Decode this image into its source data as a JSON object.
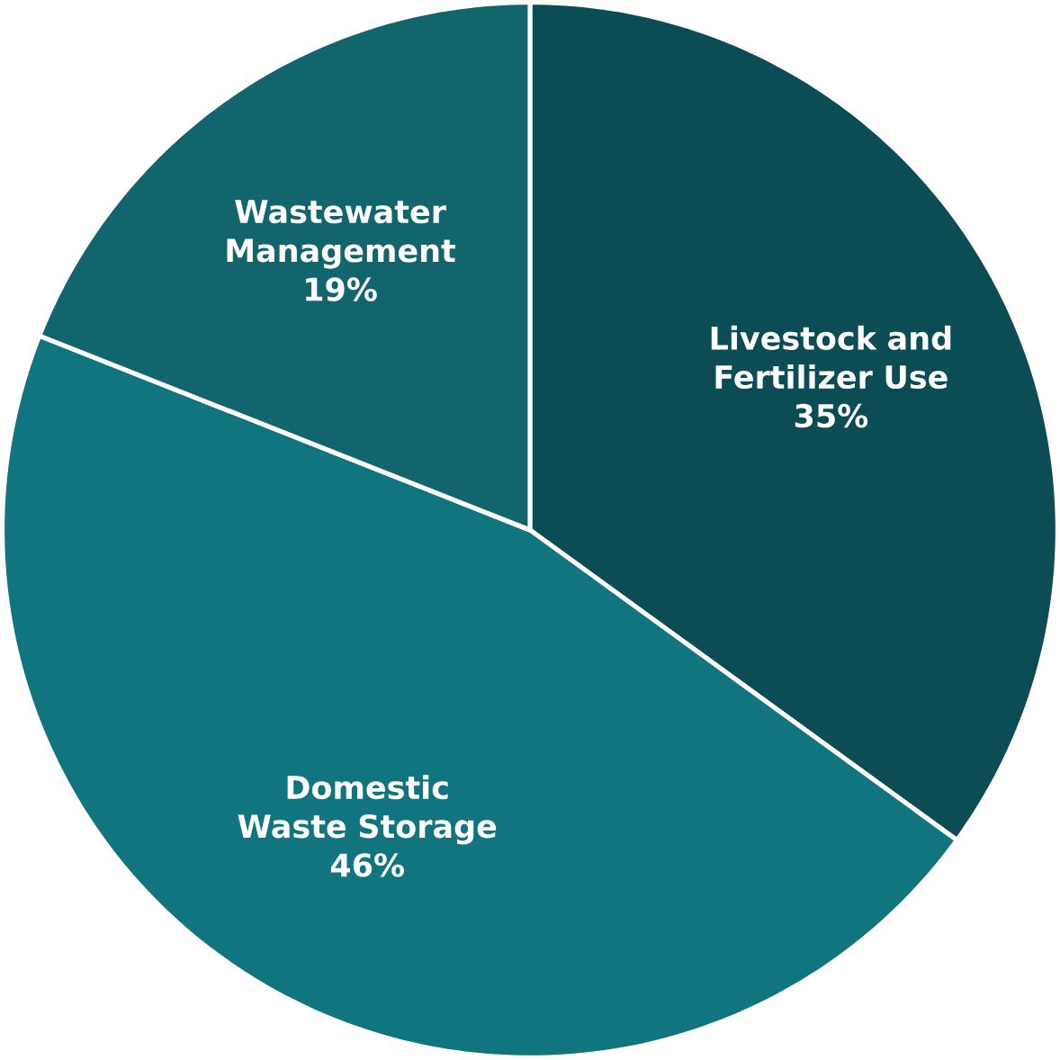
{
  "chart_data": {
    "type": "pie",
    "categories": [
      "Livestock and Fertilizer Use",
      "Domestic Waste Storage",
      "Wastewater Management"
    ],
    "values": [
      35,
      46,
      19
    ],
    "value_labels": [
      "35%",
      "46%",
      "19%"
    ],
    "colors": [
      "#0b4c55",
      "#10757f",
      "#12646d"
    ]
  }
}
